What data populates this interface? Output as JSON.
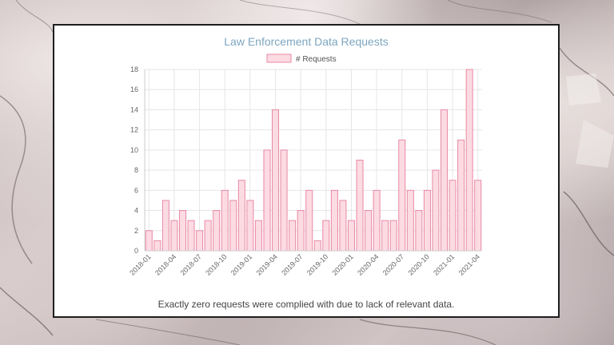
{
  "caption": "Exactly zero requests were complied with due to lack of relevant data.",
  "colors": {
    "bar_fill": "#fcdbe3",
    "bar_stroke": "#e889a6",
    "grid": "#e6e6e6",
    "title": "#7ea6c0"
  },
  "chart_data": {
    "type": "bar",
    "title": "Law Enforcement Data Requests",
    "legend": {
      "position": "top",
      "entries": [
        "# Requests"
      ]
    },
    "grid": true,
    "ylim": [
      0,
      18
    ],
    "yticks": [
      0,
      2,
      4,
      6,
      8,
      10,
      12,
      14,
      16,
      18
    ],
    "xticks": [
      "2018-01",
      "2018-04",
      "2018-07",
      "2018-10",
      "2019-01",
      "2019-04",
      "2019-07",
      "2019-10",
      "2020-01",
      "2020-04",
      "2020-07",
      "2020-10",
      "2021-01",
      "2021-04"
    ],
    "categories": [
      "2018-01",
      "2018-02",
      "2018-03",
      "2018-04",
      "2018-05",
      "2018-06",
      "2018-07",
      "2018-08",
      "2018-09",
      "2018-10",
      "2018-11",
      "2018-12",
      "2019-01",
      "2019-02",
      "2019-03",
      "2019-04",
      "2019-05",
      "2019-06",
      "2019-07",
      "2019-08",
      "2019-09",
      "2019-10",
      "2019-11",
      "2019-12",
      "2020-01",
      "2020-02",
      "2020-03",
      "2020-04",
      "2020-05",
      "2020-06",
      "2020-07",
      "2020-08",
      "2020-09",
      "2020-10",
      "2020-11",
      "2020-12",
      "2021-01",
      "2021-02",
      "2021-03",
      "2021-04"
    ],
    "series": [
      {
        "name": "# Requests",
        "values": [
          2,
          1,
          5,
          3,
          4,
          3,
          2,
          3,
          4,
          6,
          5,
          7,
          5,
          3,
          10,
          14,
          10,
          3,
          4,
          6,
          1,
          3,
          6,
          5,
          3,
          9,
          4,
          6,
          3,
          3,
          11,
          6,
          4,
          6,
          8,
          14,
          7,
          11,
          18,
          7
        ]
      }
    ]
  }
}
